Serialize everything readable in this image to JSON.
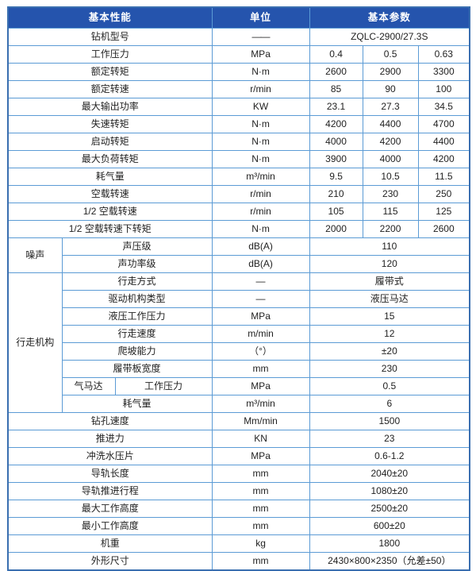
{
  "colors": {
    "header_bg": "#2554ad",
    "header_text": "#ffffff",
    "border": "#5b9bd5",
    "outer_border": "#3a6fb0",
    "text": "#1f1f1f",
    "muted_dash": "#8a8f98"
  },
  "chart_data": {
    "type": "table",
    "title": "钻机基本参数表",
    "model": "ZQLC-2900/27.3S"
  },
  "table": {
    "header": [
      {
        "t": "基本性能",
        "cs": 3,
        "k": "header"
      },
      {
        "t": "单位",
        "cs": 1,
        "k": "header"
      },
      {
        "t": "基本参数",
        "cs": 3,
        "k": "header"
      }
    ],
    "rows": [
      {
        "cells": [
          {
            "t": "钻机型号",
            "cs": 3,
            "k": "param"
          },
          {
            "t": "——",
            "k": "unit",
            "muted": true
          },
          {
            "t": "ZQLC-2900/27.3S",
            "cs": 3,
            "k": "value"
          }
        ]
      },
      {
        "cells": [
          {
            "t": "工作压力",
            "cs": 3,
            "k": "param"
          },
          {
            "t": "MPa",
            "k": "unit"
          },
          {
            "t": "0.4",
            "k": "value"
          },
          {
            "t": "0.5",
            "k": "value"
          },
          {
            "t": "0.63",
            "k": "value"
          }
        ]
      },
      {
        "cells": [
          {
            "t": "额定转矩",
            "cs": 3,
            "k": "param"
          },
          {
            "t": "N·m",
            "k": "unit"
          },
          {
            "t": "2600",
            "k": "value"
          },
          {
            "t": "2900",
            "k": "value"
          },
          {
            "t": "3300",
            "k": "value"
          }
        ]
      },
      {
        "cells": [
          {
            "t": "额定转速",
            "cs": 3,
            "k": "param"
          },
          {
            "t": "r/min",
            "k": "unit"
          },
          {
            "t": "85",
            "k": "value"
          },
          {
            "t": "90",
            "k": "value"
          },
          {
            "t": "100",
            "k": "value"
          }
        ]
      },
      {
        "cells": [
          {
            "t": "最大输出功率",
            "cs": 3,
            "k": "param"
          },
          {
            "t": "KW",
            "k": "unit"
          },
          {
            "t": "23.1",
            "k": "value"
          },
          {
            "t": "27.3",
            "k": "value"
          },
          {
            "t": "34.5",
            "k": "value"
          }
        ]
      },
      {
        "cells": [
          {
            "t": "失速转矩",
            "cs": 3,
            "k": "param"
          },
          {
            "t": "N·m",
            "k": "unit"
          },
          {
            "t": "4200",
            "k": "value"
          },
          {
            "t": "4400",
            "k": "value"
          },
          {
            "t": "4700",
            "k": "value"
          }
        ]
      },
      {
        "cells": [
          {
            "t": "启动转矩",
            "cs": 3,
            "k": "param"
          },
          {
            "t": "N·m",
            "k": "unit"
          },
          {
            "t": "4000",
            "k": "value"
          },
          {
            "t": "4200",
            "k": "value"
          },
          {
            "t": "4400",
            "k": "value"
          }
        ]
      },
      {
        "cells": [
          {
            "t": "最大负荷转矩",
            "cs": 3,
            "k": "param"
          },
          {
            "t": "N·m",
            "k": "unit"
          },
          {
            "t": "3900",
            "k": "value"
          },
          {
            "t": "4000",
            "k": "value"
          },
          {
            "t": "4200",
            "k": "value"
          }
        ]
      },
      {
        "cells": [
          {
            "t": "耗气量",
            "cs": 3,
            "k": "param"
          },
          {
            "t": "m³/min",
            "k": "unit"
          },
          {
            "t": "9.5",
            "k": "value"
          },
          {
            "t": "10.5",
            "k": "value"
          },
          {
            "t": "11.5",
            "k": "value"
          }
        ]
      },
      {
        "cells": [
          {
            "t": "空载转速",
            "cs": 3,
            "k": "param"
          },
          {
            "t": "r/min",
            "k": "unit"
          },
          {
            "t": "210",
            "k": "value"
          },
          {
            "t": "230",
            "k": "value"
          },
          {
            "t": "250",
            "k": "value"
          }
        ]
      },
      {
        "cells": [
          {
            "t": "1/2 空载转速",
            "cs": 3,
            "k": "param"
          },
          {
            "t": "r/min",
            "k": "unit"
          },
          {
            "t": "105",
            "k": "value"
          },
          {
            "t": "115",
            "k": "value"
          },
          {
            "t": "125",
            "k": "value"
          }
        ]
      },
      {
        "cells": [
          {
            "t": "1/2 空载转速下转矩",
            "cs": 3,
            "k": "param"
          },
          {
            "t": "N·m",
            "k": "unit"
          },
          {
            "t": "2000",
            "k": "value"
          },
          {
            "t": "2200",
            "k": "value"
          },
          {
            "t": "2600",
            "k": "value"
          }
        ]
      },
      {
        "cells": [
          {
            "t": "噪声",
            "rs": 2,
            "k": "group"
          },
          {
            "t": "声压级",
            "cs": 2,
            "k": "param"
          },
          {
            "t": "dB(A)",
            "k": "unit"
          },
          {
            "t": "110",
            "cs": 3,
            "k": "value"
          }
        ]
      },
      {
        "cells": [
          {
            "t": "声功率级",
            "cs": 2,
            "k": "param"
          },
          {
            "t": "dB(A)",
            "k": "unit"
          },
          {
            "t": "120",
            "cs": 3,
            "k": "value"
          }
        ]
      },
      {
        "cells": [
          {
            "t": "行走机构",
            "rs": 8,
            "k": "group"
          },
          {
            "t": "行走方式",
            "cs": 2,
            "k": "param"
          },
          {
            "t": "—",
            "k": "unit"
          },
          {
            "t": "履带式",
            "cs": 3,
            "k": "value"
          }
        ]
      },
      {
        "cells": [
          {
            "t": "驱动机构类型",
            "cs": 2,
            "k": "param"
          },
          {
            "t": "—",
            "k": "unit"
          },
          {
            "t": "液压马达",
            "cs": 3,
            "k": "value"
          }
        ]
      },
      {
        "cells": [
          {
            "t": "液压工作压力",
            "cs": 2,
            "k": "param"
          },
          {
            "t": "MPa",
            "k": "unit"
          },
          {
            "t": "15",
            "cs": 3,
            "k": "value"
          }
        ]
      },
      {
        "cells": [
          {
            "t": "行走速度",
            "cs": 2,
            "k": "param"
          },
          {
            "t": "m/min",
            "k": "unit"
          },
          {
            "t": "12",
            "cs": 3,
            "k": "value"
          }
        ]
      },
      {
        "cells": [
          {
            "t": "爬坡能力",
            "cs": 2,
            "k": "param"
          },
          {
            "t": "（°）",
            "k": "unit"
          },
          {
            "t": "±20",
            "cs": 3,
            "k": "value"
          }
        ]
      },
      {
        "cells": [
          {
            "t": "履带板宽度",
            "cs": 2,
            "k": "param"
          },
          {
            "t": "mm",
            "k": "unit"
          },
          {
            "t": "230",
            "cs": 3,
            "k": "value"
          }
        ]
      },
      {
        "cells": [
          {
            "t": "气马达",
            "k": "sub"
          },
          {
            "t": "工作压力",
            "k": "param"
          },
          {
            "t": "MPa",
            "k": "unit"
          },
          {
            "t": "0.5",
            "cs": 3,
            "k": "value"
          }
        ]
      },
      {
        "cells": [
          {
            "t": "耗气量",
            "cs": 2,
            "k": "param"
          },
          {
            "t": "m³/min",
            "k": "unit"
          },
          {
            "t": "6",
            "cs": 3,
            "k": "value"
          }
        ]
      },
      {
        "cells": [
          {
            "t": "钻孔速度",
            "cs": 3,
            "k": "param"
          },
          {
            "t": "Mm/min",
            "k": "unit"
          },
          {
            "t": "1500",
            "cs": 3,
            "k": "value"
          }
        ]
      },
      {
        "cells": [
          {
            "t": "推进力",
            "cs": 3,
            "k": "param"
          },
          {
            "t": "KN",
            "k": "unit"
          },
          {
            "t": "23",
            "cs": 3,
            "k": "value"
          }
        ]
      },
      {
        "cells": [
          {
            "t": "冲洗水压片",
            "cs": 3,
            "k": "param"
          },
          {
            "t": "MPa",
            "k": "unit"
          },
          {
            "t": "0.6-1.2",
            "cs": 3,
            "k": "value"
          }
        ]
      },
      {
        "cells": [
          {
            "t": "导轨长度",
            "cs": 3,
            "k": "param"
          },
          {
            "t": "mm",
            "k": "unit"
          },
          {
            "t": "2040±20",
            "cs": 3,
            "k": "value"
          }
        ]
      },
      {
        "cells": [
          {
            "t": "导轨推进行程",
            "cs": 3,
            "k": "param"
          },
          {
            "t": "mm",
            "k": "unit"
          },
          {
            "t": "1080±20",
            "cs": 3,
            "k": "value"
          }
        ]
      },
      {
        "cells": [
          {
            "t": "最大工作高度",
            "cs": 3,
            "k": "param"
          },
          {
            "t": "mm",
            "k": "unit"
          },
          {
            "t": "2500±20",
            "cs": 3,
            "k": "value"
          }
        ]
      },
      {
        "cells": [
          {
            "t": "最小工作高度",
            "cs": 3,
            "k": "param"
          },
          {
            "t": "mm",
            "k": "unit"
          },
          {
            "t": "600±20",
            "cs": 3,
            "k": "value"
          }
        ]
      },
      {
        "cells": [
          {
            "t": "机重",
            "cs": 3,
            "k": "param"
          },
          {
            "t": "kg",
            "k": "unit"
          },
          {
            "t": "1800",
            "cs": 3,
            "k": "value"
          }
        ]
      },
      {
        "cells": [
          {
            "t": "外形尺寸",
            "cs": 3,
            "k": "param"
          },
          {
            "t": "mm",
            "k": "unit"
          },
          {
            "t": "2430×800×2350（允差±50）",
            "cs": 3,
            "k": "value"
          }
        ]
      }
    ]
  }
}
